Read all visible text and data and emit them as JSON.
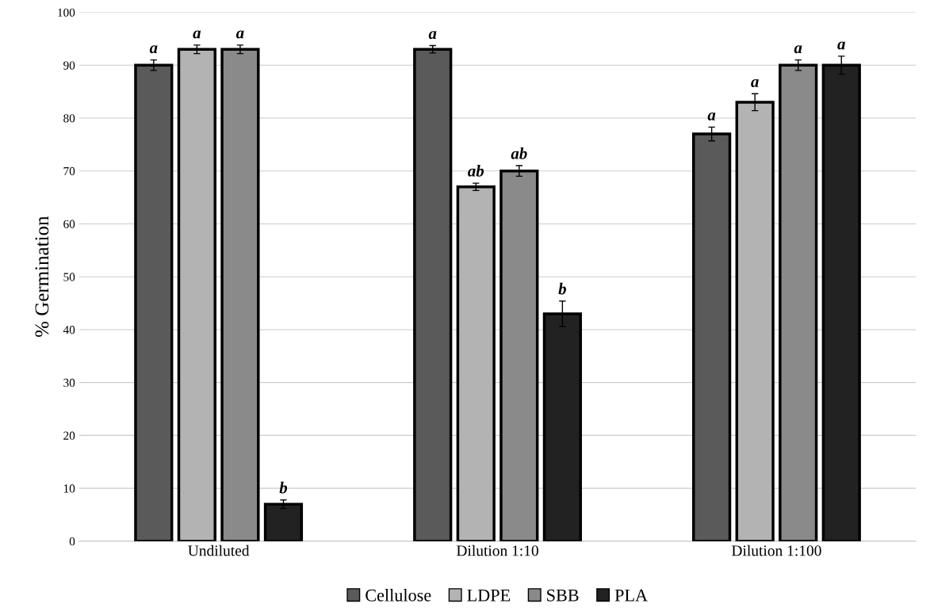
{
  "chart_data": {
    "type": "bar",
    "ylabel": "% Germination",
    "categories": [
      "Undiluted",
      "Dilution 1:10",
      "Dilution 1:100"
    ],
    "series": [
      {
        "name": "Cellulose",
        "color": "#5a5a5a",
        "values": [
          90,
          93,
          77
        ],
        "errors": [
          1,
          0.7,
          1.3
        ],
        "value_labels": [
          "a",
          "a",
          "a"
        ]
      },
      {
        "name": "LDPE",
        "color": "#b3b3b3",
        "values": [
          93,
          67,
          83
        ],
        "errors": [
          0.8,
          0.7,
          1.6
        ],
        "value_labels": [
          "a",
          "ab",
          "a"
        ]
      },
      {
        "name": "SBB",
        "color": "#8a8a8a",
        "values": [
          93,
          70,
          90
        ],
        "errors": [
          0.8,
          1,
          1
        ],
        "value_labels": [
          "a",
          "ab",
          "a"
        ]
      },
      {
        "name": "PLA",
        "color": "#222222",
        "values": [
          7,
          43,
          90
        ],
        "errors": [
          0.8,
          2.4,
          1.7
        ],
        "value_labels": [
          "b",
          "b",
          "a"
        ]
      }
    ],
    "ylim": [
      0,
      100
    ],
    "yticks": [
      0,
      10,
      20,
      30,
      40,
      50,
      60,
      70,
      80,
      90,
      100
    ],
    "grid": "y",
    "legend": "bottom"
  }
}
